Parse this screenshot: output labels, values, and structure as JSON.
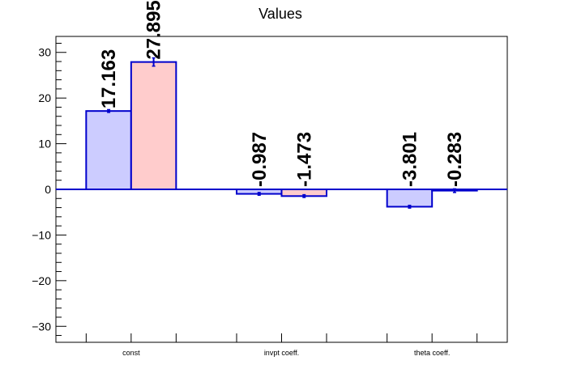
{
  "chart_data": {
    "type": "bar",
    "title": "Values",
    "xlabel": "",
    "ylabel": "",
    "ylim": [
      -33.5,
      33.5
    ],
    "yticks": [
      -30,
      -20,
      -10,
      0,
      10,
      20,
      30
    ],
    "categories": [
      "const",
      "invpt coeff.",
      "theta coeff."
    ],
    "series": [
      {
        "values": [
          17.163,
          -0.987,
          -3.801
        ],
        "labels": [
          "17.163",
          "-0.987",
          "-3.801"
        ],
        "errors": [
          0.3,
          0.3,
          0.3
        ],
        "fill": "#ccccff",
        "stroke": "#0000cc"
      },
      {
        "values": [
          27.895,
          -1.473,
          -0.283
        ],
        "labels": [
          "27.895",
          "-1.473",
          "-0.283"
        ],
        "errors": [
          0.9,
          0.3,
          0.4
        ],
        "fill": "#ffcccc",
        "stroke": "#0000cc"
      }
    ],
    "grid": false,
    "legend": "none",
    "baseline_color": "#0000cc"
  }
}
